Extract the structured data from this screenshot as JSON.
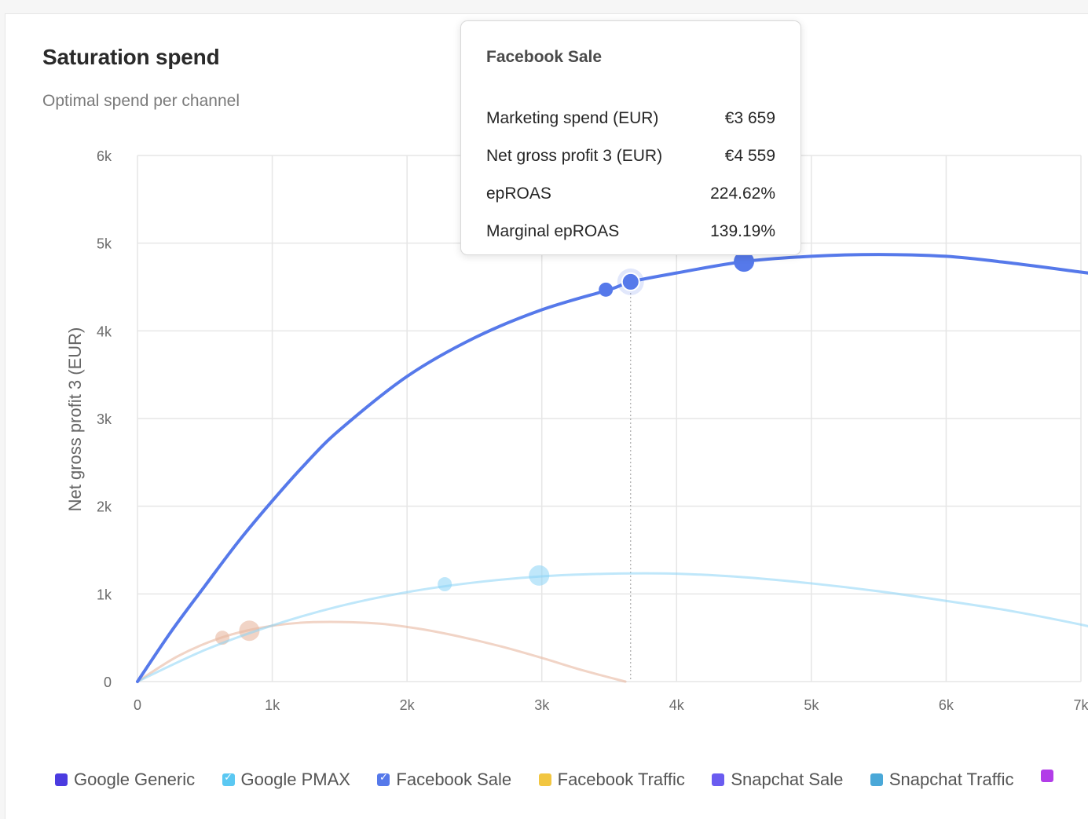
{
  "header": {
    "title": "Saturation spend",
    "subtitle": "Optimal spend per channel"
  },
  "tooltip": {
    "title": "Facebook Sale",
    "rows": [
      {
        "label": "Marketing spend (EUR)",
        "value": "€3 659"
      },
      {
        "label": "Net gross profit 3 (EUR)",
        "value": "€4 559"
      },
      {
        "label": "epROAS",
        "value": "224.62%"
      },
      {
        "label": "Marginal epROAS",
        "value": "139.19%"
      }
    ]
  },
  "legend": [
    {
      "label": "Google Generic",
      "color": "#4b3be0",
      "checked": false
    },
    {
      "label": "Google PMAX",
      "color": "#5bc8f2",
      "checked": true
    },
    {
      "label": "Facebook Sale",
      "color": "#5679ea",
      "checked": true
    },
    {
      "label": "Facebook Traffic",
      "color": "#f2c641",
      "checked": false
    },
    {
      "label": "Snapchat Sale",
      "color": "#6a5cf0",
      "checked": false
    },
    {
      "label": "Snapchat Traffic",
      "color": "#4aa8d8",
      "checked": false
    },
    {
      "label": "",
      "color": "#b23de8",
      "checked": false
    }
  ],
  "chart_data": {
    "type": "line",
    "xlabel": "",
    "ylabel": "Net gross profit 3 (EUR)",
    "xlim": [
      0,
      7000
    ],
    "ylim": [
      0,
      6000
    ],
    "x_ticks": [
      0,
      1000,
      2000,
      3000,
      4000,
      5000,
      6000,
      7000
    ],
    "x_tick_labels": [
      "0",
      "1k",
      "2k",
      "3k",
      "4k",
      "5k",
      "6k",
      "7k"
    ],
    "y_ticks": [
      0,
      1000,
      2000,
      3000,
      4000,
      5000,
      6000
    ],
    "y_tick_labels": [
      "0",
      "1k",
      "2k",
      "3k",
      "4k",
      "5k",
      "6k"
    ],
    "grid": true,
    "legend_position": "bottom",
    "hover_x": 3659,
    "series": [
      {
        "name": "Facebook Sale",
        "color": "#5679ea",
        "opacity": 1,
        "width": 4,
        "x": [
          0,
          250,
          500,
          750,
          1000,
          1250,
          1500,
          2000,
          2500,
          3000,
          3500,
          3659,
          4000,
          4500,
          5000,
          5500,
          6000,
          6500,
          7000,
          7100
        ],
        "y": [
          0,
          571,
          1090,
          1599,
          2060,
          2490,
          2870,
          3480,
          3920,
          4240,
          4470,
          4559,
          4660,
          4790,
          4850,
          4870,
          4850,
          4770,
          4670,
          4650
        ],
        "markers": [
          {
            "x": 3475,
            "y": 4470,
            "size": "small"
          },
          {
            "x": 3659,
            "y": 4559,
            "size": "hover"
          },
          {
            "x": 4500,
            "y": 4790,
            "size": "large"
          }
        ]
      },
      {
        "name": "Google PMAX",
        "color": "#8ad4f5",
        "opacity": 0.55,
        "width": 3,
        "x": [
          0,
          500,
          1000,
          1500,
          2000,
          2500,
          3000,
          3500,
          4000,
          4500,
          5000,
          5500,
          6000,
          6500,
          7000,
          7100
        ],
        "y": [
          0,
          360,
          640,
          860,
          1020,
          1130,
          1200,
          1230,
          1230,
          1190,
          1120,
          1030,
          920,
          800,
          650,
          610
        ],
        "markers": [
          {
            "x": 2280,
            "y": 1110,
            "size": "small"
          },
          {
            "x": 2980,
            "y": 1210,
            "size": "large"
          }
        ]
      },
      {
        "name": "",
        "color": "#e7b8a0",
        "opacity": 0.6,
        "width": 3,
        "x": [
          0,
          300,
          600,
          900,
          1200,
          1500,
          1800,
          2100,
          2400,
          2700,
          3000,
          3300,
          3620
        ],
        "y": [
          0,
          290,
          490,
          610,
          670,
          680,
          660,
          600,
          510,
          400,
          270,
          130,
          0
        ],
        "markers": [
          {
            "x": 630,
            "y": 500,
            "size": "small"
          },
          {
            "x": 830,
            "y": 580,
            "size": "large"
          }
        ]
      }
    ]
  }
}
